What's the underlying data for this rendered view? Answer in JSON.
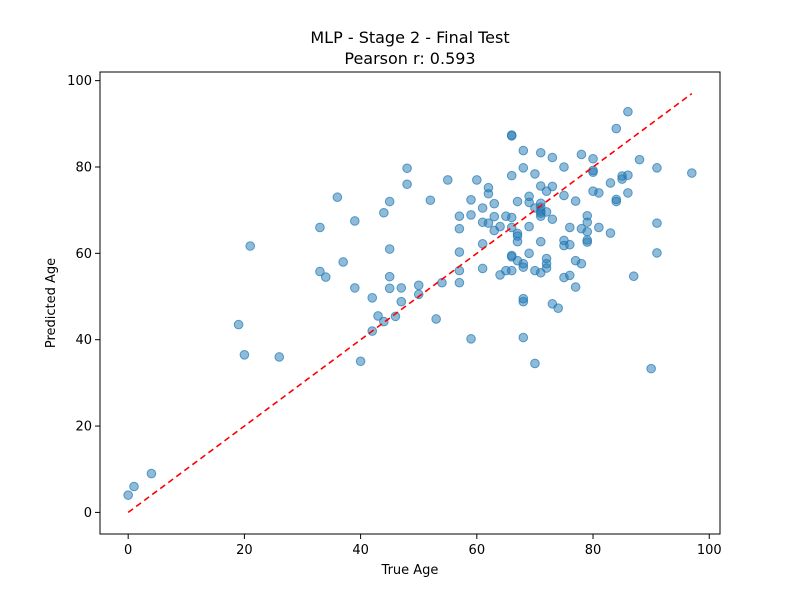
{
  "chart_data": {
    "type": "scatter",
    "title": "MLP - Stage 2 - Final Test",
    "subtitle": "Pearson r: 0.593",
    "xlabel": "True Age",
    "ylabel": "Predicted Age",
    "xlim": [
      -4.85,
      101.85
    ],
    "ylim": [
      -5.0,
      102.0
    ],
    "xticks": [
      0,
      20,
      40,
      60,
      80,
      100
    ],
    "yticks": [
      0,
      20,
      40,
      60,
      80,
      100
    ],
    "grid": false,
    "point_color": "#1f77b4",
    "point_alpha": 0.5,
    "reference_line": {
      "x": [
        0,
        97
      ],
      "y": [
        0,
        97
      ],
      "color": "#ff0000",
      "style": "dashed"
    },
    "points": [
      [
        0,
        4
      ],
      [
        1,
        6
      ],
      [
        4,
        9
      ],
      [
        19,
        43.5
      ],
      [
        20,
        36.5
      ],
      [
        21,
        61.7
      ],
      [
        26,
        36
      ],
      [
        33,
        66
      ],
      [
        33,
        55.8
      ],
      [
        34,
        54.5
      ],
      [
        36,
        73
      ],
      [
        37,
        58
      ],
      [
        39,
        67.5
      ],
      [
        39,
        52
      ],
      [
        40,
        35
      ],
      [
        42,
        49.7
      ],
      [
        42,
        42
      ],
      [
        43,
        45.5
      ],
      [
        44,
        69.4
      ],
      [
        44,
        44.2
      ],
      [
        45,
        72
      ],
      [
        45,
        61
      ],
      [
        45,
        54.6
      ],
      [
        45,
        51.9
      ],
      [
        46,
        45.4
      ],
      [
        47,
        52
      ],
      [
        47,
        48.8
      ],
      [
        48,
        79.7
      ],
      [
        48,
        76
      ],
      [
        50,
        52.6
      ],
      [
        50,
        50.5
      ],
      [
        52,
        72.3
      ],
      [
        53,
        44.8
      ],
      [
        54,
        53.2
      ],
      [
        55,
        77
      ],
      [
        57,
        68.6
      ],
      [
        57,
        65.7
      ],
      [
        57,
        60.3
      ],
      [
        57,
        56
      ],
      [
        57,
        53.2
      ],
      [
        59,
        72.4
      ],
      [
        59,
        68.9
      ],
      [
        59,
        40.2
      ],
      [
        60,
        77
      ],
      [
        61,
        70.5
      ],
      [
        61,
        67.2
      ],
      [
        61,
        62.2
      ],
      [
        61,
        56.5
      ],
      [
        62,
        75.2
      ],
      [
        62,
        73.8
      ],
      [
        62,
        67
      ],
      [
        63,
        71.5
      ],
      [
        63,
        68.5
      ],
      [
        63,
        65.3
      ],
      [
        64,
        66.2
      ],
      [
        64,
        55
      ],
      [
        65,
        68.6
      ],
      [
        65,
        56
      ],
      [
        66,
        87.4
      ],
      [
        66,
        87.2
      ],
      [
        66,
        78
      ],
      [
        66,
        68.3
      ],
      [
        66,
        66
      ],
      [
        66,
        59.5
      ],
      [
        66,
        59.2
      ],
      [
        66,
        56
      ],
      [
        67,
        72
      ],
      [
        67,
        64.6
      ],
      [
        67,
        64
      ],
      [
        67,
        62.7
      ],
      [
        67,
        58.3
      ],
      [
        68,
        83.8
      ],
      [
        68,
        79.8
      ],
      [
        68,
        57.6
      ],
      [
        68,
        56.8
      ],
      [
        68,
        49.5
      ],
      [
        68,
        48.8
      ],
      [
        68,
        40.5
      ],
      [
        69,
        73.2
      ],
      [
        69,
        71.8
      ],
      [
        69,
        66.2
      ],
      [
        69,
        60
      ],
      [
        70,
        78.4
      ],
      [
        70,
        70.5
      ],
      [
        70,
        56
      ],
      [
        70,
        34.5
      ],
      [
        71,
        83.3
      ],
      [
        71,
        75.6
      ],
      [
        71,
        71.6
      ],
      [
        71,
        70.7
      ],
      [
        71,
        69.8
      ],
      [
        71,
        69.3
      ],
      [
        71,
        68.6
      ],
      [
        71,
        62.7
      ],
      [
        71,
        55.5
      ],
      [
        72,
        74.4
      ],
      [
        72,
        69.6
      ],
      [
        72,
        58.8
      ],
      [
        72,
        57.6
      ],
      [
        72,
        56.6
      ],
      [
        73,
        82.2
      ],
      [
        73,
        75.5
      ],
      [
        73,
        67.9
      ],
      [
        73,
        48.3
      ],
      [
        74,
        47.3
      ],
      [
        75,
        80
      ],
      [
        75,
        73.4
      ],
      [
        75,
        63
      ],
      [
        75,
        61.8
      ],
      [
        75,
        54.4
      ],
      [
        76,
        66
      ],
      [
        76,
        62
      ],
      [
        76,
        54.9
      ],
      [
        77,
        72.1
      ],
      [
        77,
        58.3
      ],
      [
        77,
        52.2
      ],
      [
        78,
        82.9
      ],
      [
        78,
        65.7
      ],
      [
        78,
        57.6
      ],
      [
        79,
        68.7
      ],
      [
        79,
        67.2
      ],
      [
        79,
        65
      ],
      [
        79,
        63.1
      ],
      [
        79,
        62.6
      ],
      [
        80,
        81.9
      ],
      [
        80,
        79.2
      ],
      [
        80,
        78.8
      ],
      [
        80,
        74.4
      ],
      [
        81,
        74
      ],
      [
        81,
        66
      ],
      [
        83,
        76.3
      ],
      [
        83,
        64.7
      ],
      [
        84,
        88.9
      ],
      [
        84,
        72.5
      ],
      [
        84,
        72
      ],
      [
        85,
        77.9
      ],
      [
        85,
        77.2
      ],
      [
        86,
        92.8
      ],
      [
        86,
        78.1
      ],
      [
        86,
        74
      ],
      [
        87,
        54.7
      ],
      [
        88,
        81.7
      ],
      [
        90,
        33.3
      ],
      [
        91,
        79.8
      ],
      [
        91,
        67
      ],
      [
        91,
        60.1
      ],
      [
        97,
        78.6
      ]
    ]
  }
}
